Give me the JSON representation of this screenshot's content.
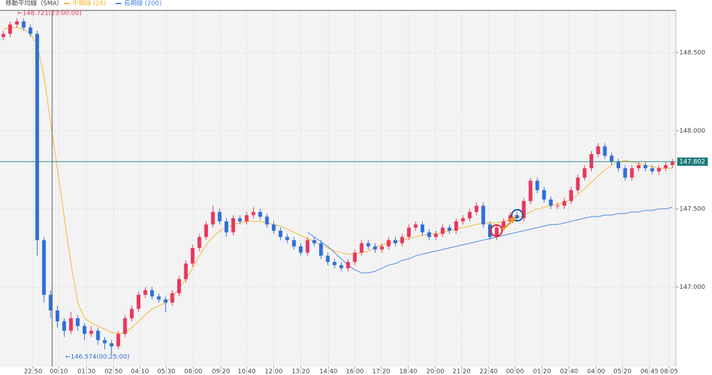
{
  "chart_data": {
    "type": "candlestick",
    "title": "移動平均線（SMA）",
    "up_color": "#e8365d",
    "down_color": "#2f6fd8",
    "ylim": [
      146.49,
      148.77
    ],
    "yticks": [
      {
        "value": 147,
        "label": "147.000"
      },
      {
        "value": 147.5,
        "label": "147.500"
      },
      {
        "value": 148,
        "label": "148.000"
      },
      {
        "value": 148.5,
        "label": "148.500"
      }
    ],
    "xlim": [
      0,
      100
    ],
    "xticks": [
      {
        "value": 4.9,
        "label": "22:50"
      },
      {
        "value": 8.7,
        "label": "00:10"
      },
      {
        "value": 12.8,
        "label": "01:30"
      },
      {
        "value": 16.8,
        "label": "02:50"
      },
      {
        "value": 20.7,
        "label": "04:10"
      },
      {
        "value": 24.6,
        "label": "05:30"
      },
      {
        "value": 28.6,
        "label": "08:00"
      },
      {
        "value": 32.7,
        "label": "09:20"
      },
      {
        "value": 36.5,
        "label": "10:40"
      },
      {
        "value": 40.5,
        "label": "12:00"
      },
      {
        "value": 44.5,
        "label": "13:20"
      },
      {
        "value": 48.6,
        "label": "14:40"
      },
      {
        "value": 52.5,
        "label": "16:00"
      },
      {
        "value": 56.4,
        "label": "17:20"
      },
      {
        "value": 60.4,
        "label": "18:40"
      },
      {
        "value": 64.4,
        "label": "20:00"
      },
      {
        "value": 68.3,
        "label": "21:20"
      },
      {
        "value": 72.3,
        "label": "22:40"
      },
      {
        "value": 76.2,
        "label": "00:00"
      },
      {
        "value": 80.2,
        "label": "01:20"
      },
      {
        "value": 84.2,
        "label": "02:40"
      },
      {
        "value": 88.2,
        "label": "04:00"
      },
      {
        "value": 92.1,
        "label": "05:20"
      },
      {
        "value": 96.1,
        "label": "06:45"
      },
      {
        "value": 99,
        "label": "08:05"
      }
    ],
    "grid": true,
    "current_price": 147.802,
    "annotations": [
      "←148.721(23:00:00)",
      "←146.574(00:25:00)"
    ],
    "ohlc": [
      [
        148.6,
        148.64,
        148.58,
        148.62
      ],
      [
        148.62,
        148.7,
        148.6,
        148.68
      ],
      [
        148.68,
        148.72,
        148.66,
        148.7
      ],
      [
        148.7,
        148.72,
        148.64,
        148.66
      ],
      [
        148.66,
        148.68,
        148.6,
        148.62
      ],
      [
        148.62,
        148.64,
        147.2,
        147.3
      ],
      [
        147.3,
        147.32,
        146.9,
        146.95
      ],
      [
        146.95,
        146.98,
        146.8,
        146.85
      ],
      [
        146.85,
        146.88,
        146.74,
        146.78
      ],
      [
        146.78,
        146.8,
        146.68,
        146.72
      ],
      [
        146.72,
        146.84,
        146.7,
        146.8
      ],
      [
        146.8,
        146.82,
        146.72,
        146.75
      ],
      [
        146.75,
        146.77,
        146.66,
        146.7
      ],
      [
        146.7,
        146.75,
        146.68,
        146.72
      ],
      [
        146.72,
        146.74,
        146.63,
        146.66
      ],
      [
        146.66,
        146.68,
        146.6,
        146.64
      ],
      [
        146.64,
        146.66,
        146.57,
        146.62
      ],
      [
        146.62,
        146.72,
        146.6,
        146.7
      ],
      [
        146.7,
        146.82,
        146.68,
        146.8
      ],
      [
        146.8,
        146.88,
        146.78,
        146.86
      ],
      [
        146.86,
        146.97,
        146.84,
        146.95
      ],
      [
        146.95,
        147.0,
        146.93,
        146.98
      ],
      [
        146.98,
        147.0,
        146.92,
        146.94
      ],
      [
        146.94,
        146.96,
        146.9,
        146.92
      ],
      [
        146.92,
        146.94,
        146.84,
        146.9
      ],
      [
        146.9,
        146.98,
        146.88,
        146.96
      ],
      [
        146.96,
        147.07,
        146.94,
        147.05
      ],
      [
        147.05,
        147.17,
        147.03,
        147.15
      ],
      [
        147.15,
        147.27,
        147.13,
        147.25
      ],
      [
        147.25,
        147.34,
        147.23,
        147.32
      ],
      [
        147.32,
        147.42,
        147.3,
        147.4
      ],
      [
        147.4,
        147.52,
        147.38,
        147.48
      ],
      [
        147.48,
        147.5,
        147.4,
        147.42
      ],
      [
        147.42,
        147.44,
        147.32,
        147.35
      ],
      [
        147.35,
        147.46,
        147.33,
        147.44
      ],
      [
        147.44,
        147.46,
        147.4,
        147.42
      ],
      [
        147.42,
        147.48,
        147.4,
        147.46
      ],
      [
        147.46,
        147.51,
        147.44,
        147.48
      ],
      [
        147.48,
        147.5,
        147.43,
        147.45
      ],
      [
        147.45,
        147.47,
        147.38,
        147.4
      ],
      [
        147.4,
        147.42,
        147.34,
        147.36
      ],
      [
        147.36,
        147.38,
        147.3,
        147.32
      ],
      [
        147.32,
        147.34,
        147.28,
        147.3
      ],
      [
        147.3,
        147.32,
        147.24,
        147.26
      ],
      [
        147.26,
        147.28,
        147.2,
        147.22
      ],
      [
        147.22,
        147.32,
        147.2,
        147.3
      ],
      [
        147.3,
        147.32,
        147.26,
        147.28
      ],
      [
        147.28,
        147.3,
        147.18,
        147.2
      ],
      [
        147.2,
        147.22,
        147.14,
        147.16
      ],
      [
        147.16,
        147.18,
        147.12,
        147.14
      ],
      [
        147.14,
        147.16,
        147.1,
        147.12
      ],
      [
        147.12,
        147.18,
        147.1,
        147.16
      ],
      [
        147.16,
        147.24,
        147.14,
        147.22
      ],
      [
        147.22,
        147.3,
        147.2,
        147.28
      ],
      [
        147.28,
        147.3,
        147.24,
        147.26
      ],
      [
        147.26,
        147.28,
        147.22,
        147.24
      ],
      [
        147.24,
        147.28,
        147.22,
        147.26
      ],
      [
        147.26,
        147.32,
        147.24,
        147.3
      ],
      [
        147.3,
        147.32,
        147.26,
        147.28
      ],
      [
        147.28,
        147.34,
        147.26,
        147.32
      ],
      [
        147.32,
        147.4,
        147.3,
        147.38
      ],
      [
        147.38,
        147.42,
        147.36,
        147.4
      ],
      [
        147.4,
        147.42,
        147.33,
        147.35
      ],
      [
        147.35,
        147.37,
        147.3,
        147.32
      ],
      [
        147.32,
        147.36,
        147.3,
        147.34
      ],
      [
        147.34,
        147.4,
        147.32,
        147.38
      ],
      [
        147.38,
        147.4,
        147.34,
        147.36
      ],
      [
        147.36,
        147.44,
        147.34,
        147.42
      ],
      [
        147.42,
        147.46,
        147.4,
        147.44
      ],
      [
        147.44,
        147.5,
        147.42,
        147.48
      ],
      [
        147.48,
        147.54,
        147.46,
        147.52
      ],
      [
        147.52,
        147.54,
        147.38,
        147.4
      ],
      [
        147.4,
        147.42,
        147.3,
        147.32
      ],
      [
        147.32,
        147.4,
        147.3,
        147.38
      ],
      [
        147.38,
        147.44,
        147.36,
        147.42
      ],
      [
        147.42,
        147.48,
        147.4,
        147.46
      ],
      [
        147.46,
        147.48,
        147.42,
        147.44
      ],
      [
        147.44,
        147.57,
        147.42,
        147.55
      ],
      [
        147.55,
        147.7,
        147.53,
        147.68
      ],
      [
        147.68,
        147.7,
        147.6,
        147.62
      ],
      [
        147.62,
        147.64,
        147.54,
        147.56
      ],
      [
        147.56,
        147.58,
        147.5,
        147.52
      ],
      [
        147.52,
        147.54,
        147.5,
        147.52
      ],
      [
        147.52,
        147.57,
        147.5,
        147.55
      ],
      [
        147.55,
        147.64,
        147.53,
        147.62
      ],
      [
        147.62,
        147.72,
        147.6,
        147.7
      ],
      [
        147.7,
        147.78,
        147.68,
        147.76
      ],
      [
        147.76,
        147.87,
        147.74,
        147.85
      ],
      [
        147.85,
        147.92,
        147.83,
        147.9
      ],
      [
        147.9,
        147.92,
        147.82,
        147.84
      ],
      [
        147.84,
        147.86,
        147.78,
        147.8
      ],
      [
        147.8,
        147.82,
        147.74,
        147.76
      ],
      [
        147.76,
        147.78,
        147.68,
        147.7
      ],
      [
        147.7,
        147.78,
        147.68,
        147.76
      ],
      [
        147.76,
        147.8,
        147.74,
        147.78
      ],
      [
        147.78,
        147.8,
        147.74,
        147.76
      ],
      [
        147.76,
        147.78,
        147.72,
        147.74
      ],
      [
        147.74,
        147.78,
        147.72,
        147.76
      ],
      [
        147.76,
        147.8,
        147.74,
        147.78
      ],
      [
        147.78,
        147.82,
        147.76,
        147.8
      ]
    ],
    "series": [
      {
        "name": "中期線 (28)",
        "color": "#f5b731",
        "values": [
          148.65,
          148.66,
          148.66,
          148.65,
          148.62,
          148.55,
          148.35,
          148.05,
          147.75,
          147.45,
          147.15,
          146.9,
          146.8,
          146.77,
          146.75,
          146.73,
          146.71,
          146.7,
          146.71,
          146.74,
          146.78,
          146.82,
          146.86,
          146.88,
          146.9,
          146.94,
          146.99,
          147.05,
          147.12,
          147.2,
          147.27,
          147.32,
          147.36,
          147.38,
          147.4,
          147.41,
          147.42,
          147.42,
          147.42,
          147.41,
          147.4,
          147.39,
          147.37,
          147.35,
          147.33,
          147.31,
          147.29,
          147.27,
          147.25,
          147.23,
          147.22,
          147.21,
          147.21,
          147.22,
          147.23,
          147.25,
          147.27,
          147.28,
          147.29,
          147.3,
          147.31,
          147.32,
          147.33,
          147.34,
          147.34,
          147.35,
          147.36,
          147.37,
          147.38,
          147.39,
          147.4,
          147.41,
          147.41,
          147.41,
          147.42,
          147.43,
          147.44,
          147.46,
          147.48,
          147.5,
          147.51,
          147.52,
          147.53,
          147.54,
          147.56,
          147.59,
          147.63,
          147.67,
          147.71,
          147.75,
          147.78,
          147.8,
          147.81,
          147.8,
          147.79,
          147.78,
          147.77,
          147.76,
          147.76,
          147.76
        ]
      },
      {
        "name": "長期線 (200)",
        "color": "#4a86e8",
        "values": [
          null,
          null,
          null,
          null,
          null,
          null,
          null,
          null,
          null,
          null,
          null,
          null,
          null,
          null,
          null,
          null,
          null,
          null,
          null,
          null,
          null,
          null,
          null,
          null,
          null,
          null,
          null,
          null,
          null,
          null,
          null,
          null,
          null,
          null,
          null,
          null,
          null,
          null,
          null,
          null,
          null,
          null,
          null,
          null,
          null,
          147.35,
          147.32,
          147.29,
          147.26,
          147.22,
          147.18,
          147.14,
          147.11,
          147.09,
          147.09,
          147.1,
          147.12,
          147.14,
          147.15,
          147.17,
          147.18,
          147.2,
          147.21,
          147.22,
          147.23,
          147.24,
          147.25,
          147.26,
          147.27,
          147.28,
          147.29,
          147.3,
          147.31,
          147.32,
          147.33,
          147.34,
          147.35,
          147.36,
          147.37,
          147.38,
          147.39,
          147.4,
          147.4,
          147.41,
          147.42,
          147.43,
          147.44,
          147.45,
          147.45,
          147.46,
          147.46,
          147.47,
          147.47,
          147.48,
          147.48,
          147.49,
          147.49,
          147.5,
          147.5,
          147.51
        ]
      }
    ]
  }
}
